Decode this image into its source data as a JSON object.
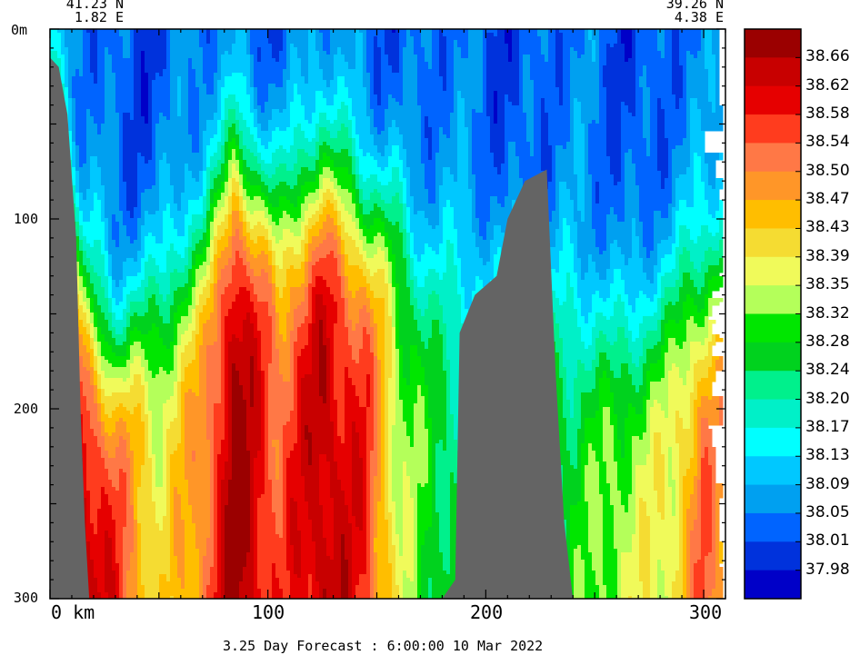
{
  "chart_data": {
    "type": "heatmap",
    "title": "",
    "subtitle": "3.25 Day Forecast :  6:00:00  10 Mar 2022",
    "start_coord": {
      "lat": "41.23 N",
      "lon": "1.82 E"
    },
    "end_coord": {
      "lat": "39.26 N",
      "lon": "4.38 E"
    },
    "x_axis": {
      "unit": "km",
      "range": [
        0,
        310
      ],
      "ticks": [
        0,
        100,
        200,
        300
      ],
      "tick_labels": [
        "0 km",
        "100",
        "200",
        "300"
      ]
    },
    "y_axis": {
      "unit": "m",
      "range": [
        0,
        300
      ],
      "inverted": true,
      "ticks": [
        0,
        100,
        200,
        300
      ],
      "tick_labels": [
        "0m",
        "100",
        "200",
        "300"
      ]
    },
    "colorbar": {
      "levels": [
        "38.66",
        "38.62",
        "38.58",
        "38.54",
        "38.50",
        "38.47",
        "38.43",
        "38.39",
        "38.35",
        "38.32",
        "38.28",
        "38.24",
        "38.20",
        "38.17",
        "38.13",
        "38.09",
        "38.05",
        "38.01",
        "37.98"
      ],
      "colors": [
        "#9b0000",
        "#c80000",
        "#e60000",
        "#ff3c1e",
        "#ff7846",
        "#ff9628",
        "#ffbe00",
        "#f5dc32",
        "#f0fa5a",
        "#b4ff5a",
        "#00e600",
        "#00d21e",
        "#00f08c",
        "#00f0c8",
        "#00ffff",
        "#00c8ff",
        "#00a0f0",
        "#0064ff",
        "#0032dc",
        "#0000c8"
      ]
    },
    "sections": [
      {
        "x": 0,
        "mix_depth": 20,
        "deep_level": 0.55
      },
      {
        "x": 15,
        "mix_depth": 150,
        "deep_level": 0.95
      },
      {
        "x": 30,
        "mix_depth": 175,
        "deep_level": 0.85
      },
      {
        "x": 50,
        "mix_depth": 140,
        "deep_level": 0.6
      },
      {
        "x": 70,
        "mix_depth": 120,
        "deep_level": 0.75
      },
      {
        "x": 85,
        "mix_depth": 75,
        "deep_level": 1.0
      },
      {
        "x": 105,
        "mix_depth": 100,
        "deep_level": 0.8
      },
      {
        "x": 125,
        "mix_depth": 80,
        "deep_level": 0.95
      },
      {
        "x": 145,
        "mix_depth": 100,
        "deep_level": 0.85
      },
      {
        "x": 160,
        "mix_depth": 95,
        "deep_level": 0.55
      },
      {
        "x": 175,
        "mix_depth": 135,
        "deep_level": 0.45
      },
      {
        "x": 190,
        "mix_depth": 130,
        "deep_level": 0.4
      },
      {
        "x": 240,
        "mix_depth": 150,
        "deep_level": 0.45
      },
      {
        "x": 260,
        "mix_depth": 165,
        "deep_level": 0.55
      },
      {
        "x": 285,
        "mix_depth": 145,
        "deep_level": 0.6
      },
      {
        "x": 300,
        "mix_depth": 140,
        "deep_level": 0.8
      },
      {
        "x": 310,
        "mix_depth": 110,
        "deep_level": 0.7
      }
    ],
    "bathymetry": [
      {
        "x": 0,
        "depth": 15
      },
      {
        "x": 4,
        "depth": 20
      },
      {
        "x": 8,
        "depth": 45
      },
      {
        "x": 12,
        "depth": 110
      },
      {
        "x": 14,
        "depth": 200
      },
      {
        "x": 16,
        "depth": 260
      },
      {
        "x": 18,
        "depth": 300
      },
      {
        "x": 180,
        "depth": 300
      },
      {
        "x": 186,
        "depth": 290
      },
      {
        "x": 188,
        "depth": 160
      },
      {
        "x": 195,
        "depth": 140
      },
      {
        "x": 205,
        "depth": 130
      },
      {
        "x": 210,
        "depth": 100
      },
      {
        "x": 218,
        "depth": 80
      },
      {
        "x": 228,
        "depth": 74
      },
      {
        "x": 232,
        "depth": 180
      },
      {
        "x": 236,
        "depth": 260
      },
      {
        "x": 240,
        "depth": 300
      }
    ]
  }
}
